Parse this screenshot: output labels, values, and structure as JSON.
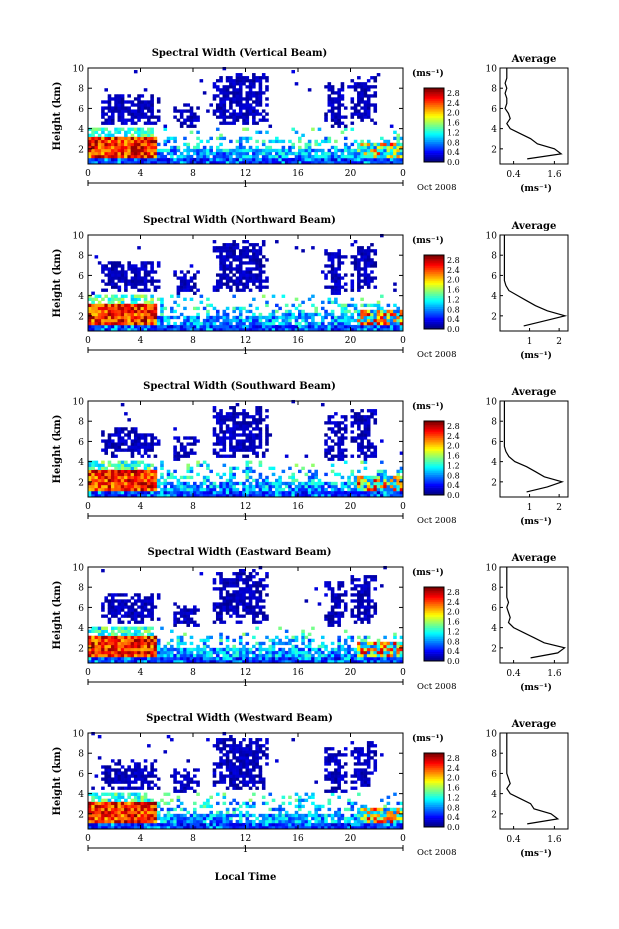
{
  "figure": {
    "xlabel": "Local Time",
    "date_label": "Oct 2008",
    "date_tick": "1",
    "colorbar_unit": "(ms⁻¹)",
    "colorbar_ticks": [
      "0.0",
      "0.4",
      "0.8",
      "1.2",
      "1.6",
      "2.0",
      "2.4",
      "2.8"
    ],
    "profile_title": "Average",
    "profile_xlabel": "(ms⁻¹)",
    "ylabel": "Height (km)",
    "x_ticks": [
      "0",
      "4",
      "8",
      "12",
      "16",
      "20",
      "0"
    ],
    "y_ticks": [
      "2",
      "4",
      "6",
      "8",
      "10"
    ]
  },
  "chart_data": [
    {
      "type": "heatmap",
      "title": "Spectral Width (Vertical Beam)",
      "xlabel": "",
      "ylabel": "Height (km)",
      "xlim": [
        0,
        24
      ],
      "ylim": [
        0.5,
        10
      ],
      "colorbar": {
        "range": [
          0,
          3.0
        ],
        "ticks": [
          0,
          0.4,
          0.8,
          1.2,
          1.6,
          2.0,
          2.4,
          2.8
        ]
      },
      "profile": {
        "title": "Average",
        "xticks": [
          "0.4",
          "1.6"
        ],
        "xlim": [
          0,
          2
        ],
        "heights": [
          1,
          1.5,
          2,
          2.5,
          3,
          3.5,
          4,
          4.5,
          5,
          5.5,
          6,
          6.5,
          7,
          7.5,
          8,
          8.5,
          9,
          9.5,
          10
        ],
        "values": [
          0.8,
          1.8,
          1.6,
          1.1,
          0.9,
          0.6,
          0.3,
          0.2,
          0.3,
          0.25,
          0.15,
          0.2,
          0.2,
          0.15,
          0.2,
          0.15,
          0.2,
          0.2,
          0.2
        ]
      }
    },
    {
      "type": "heatmap",
      "title": "Spectral Width (Northward Beam)",
      "xlabel": "",
      "ylabel": "Height (km)",
      "xlim": [
        0,
        24
      ],
      "ylim": [
        0.5,
        10
      ],
      "colorbar": {
        "range": [
          0,
          3.0
        ],
        "ticks": [
          0,
          0.4,
          0.8,
          1.2,
          1.6,
          2.0,
          2.4,
          2.8
        ]
      },
      "profile": {
        "title": "Average",
        "xticks": [
          "1",
          "2"
        ],
        "xlim": [
          0,
          2.3
        ],
        "heights": [
          1,
          1.5,
          2,
          2.5,
          3,
          3.5,
          4,
          4.5,
          5,
          5.5,
          6,
          6.5,
          7,
          7.5,
          8,
          8.5,
          9,
          9.5,
          10
        ],
        "values": [
          0.8,
          1.5,
          2.2,
          1.6,
          1.2,
          0.9,
          0.6,
          0.3,
          0.2,
          0.15,
          0.15,
          0.15,
          0.15,
          0.15,
          0.15,
          0.15,
          0.15,
          0.15,
          0.15
        ]
      }
    },
    {
      "type": "heatmap",
      "title": "Spectral Width (Southward Beam)",
      "xlabel": "",
      "ylabel": "Height (km)",
      "xlim": [
        0,
        24
      ],
      "ylim": [
        0.5,
        10
      ],
      "colorbar": {
        "range": [
          0,
          3.0
        ],
        "ticks": [
          0,
          0.4,
          0.8,
          1.2,
          1.6,
          2.0,
          2.4,
          2.8
        ]
      },
      "profile": {
        "title": "Average",
        "xticks": [
          "1",
          "2"
        ],
        "xlim": [
          0,
          2.3
        ],
        "heights": [
          1,
          1.5,
          2,
          2.5,
          3,
          3.5,
          4,
          4.5,
          5,
          5.5,
          6,
          6.5,
          7,
          7.5,
          8,
          8.5,
          9,
          9.5,
          10
        ],
        "values": [
          0.9,
          1.6,
          2.1,
          1.5,
          1.2,
          0.9,
          0.5,
          0.3,
          0.2,
          0.15,
          0.15,
          0.15,
          0.15,
          0.15,
          0.15,
          0.15,
          0.15,
          0.15,
          0.15
        ]
      }
    },
    {
      "type": "heatmap",
      "title": "Spectral Width (Eastward Beam)",
      "xlabel": "",
      "ylabel": "Height (km)",
      "xlim": [
        0,
        24
      ],
      "ylim": [
        0.5,
        10
      ],
      "colorbar": {
        "range": [
          0,
          3.0
        ],
        "ticks": [
          0,
          0.4,
          0.8,
          1.2,
          1.6,
          2.0,
          2.4,
          2.8
        ]
      },
      "profile": {
        "title": "Average",
        "xticks": [
          "0.4",
          "1.6"
        ],
        "xlim": [
          0,
          2
        ],
        "heights": [
          1,
          1.5,
          2,
          2.5,
          3,
          3.5,
          4,
          4.5,
          5,
          5.5,
          6,
          6.5,
          7,
          7.5,
          8,
          8.5,
          9,
          9.5,
          10
        ],
        "values": [
          0.9,
          1.7,
          1.9,
          1.3,
          1.0,
          0.7,
          0.4,
          0.25,
          0.3,
          0.25,
          0.2,
          0.25,
          0.2,
          0.2,
          0.2,
          0.2,
          0.2,
          0.2,
          0.2
        ]
      }
    },
    {
      "type": "heatmap",
      "title": "Spectral Width (Westward Beam)",
      "xlabel": "Local Time",
      "ylabel": "Height (km)",
      "xlim": [
        0,
        24
      ],
      "ylim": [
        0.5,
        10
      ],
      "colorbar": {
        "range": [
          0,
          3.0
        ],
        "ticks": [
          0,
          0.4,
          0.8,
          1.2,
          1.6,
          2.0,
          2.4,
          2.8
        ]
      },
      "profile": {
        "title": "Average",
        "xticks": [
          "0.4",
          "1.6"
        ],
        "xlim": [
          0,
          2
        ],
        "heights": [
          1,
          1.5,
          2,
          2.5,
          3,
          3.5,
          4,
          4.5,
          5,
          5.5,
          6,
          6.5,
          7,
          7.5,
          8,
          8.5,
          9,
          9.5,
          10
        ],
        "values": [
          0.8,
          1.7,
          1.5,
          1.0,
          0.9,
          0.6,
          0.3,
          0.2,
          0.3,
          0.25,
          0.2,
          0.2,
          0.2,
          0.2,
          0.2,
          0.2,
          0.2,
          0.2,
          0.2
        ]
      }
    }
  ]
}
